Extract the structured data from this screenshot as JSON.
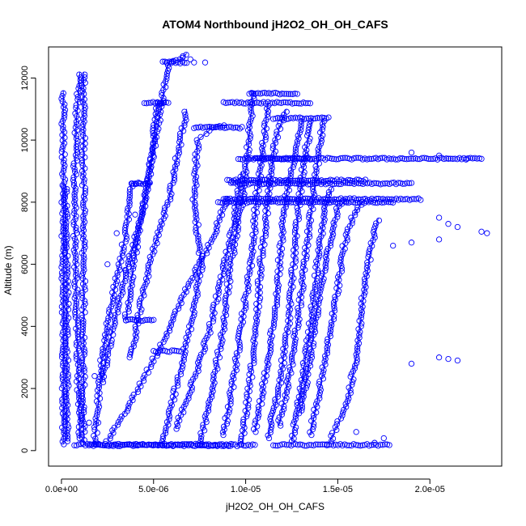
{
  "chart_data": {
    "type": "scatter",
    "title": "ATOM4 Northbound jH2O2_OH_OH_CAFS",
    "xlabel": "jH2O2_OH_OH_CAFS",
    "ylabel": "Altitude (m)",
    "xlim": [
      -7e-07,
      2.39e-05
    ],
    "ylim": [
      -500,
      13000
    ],
    "x_ticks": [
      0,
      5e-06,
      1e-05,
      1.5e-05,
      2e-05
    ],
    "x_tick_labels": [
      "0.0e+00",
      "5.0e-06",
      "1.0e-05",
      "1.5e-05",
      "2.0e-05"
    ],
    "y_ticks": [
      0,
      2000,
      4000,
      6000,
      8000,
      10000,
      12000
    ],
    "y_tick_labels": [
      "0",
      "2000",
      "4000",
      "6000",
      "8000",
      "10000",
      "12000"
    ],
    "marker": "open-circle",
    "series_color": "#0000ff",
    "grid": false,
    "legend": "none",
    "profiles": [
      [
        [
          1e-07,
          200
        ],
        [
          1e-07,
          3000
        ],
        [
          1e-07,
          6000
        ],
        [
          1e-07,
          9000
        ],
        [
          1e-07,
          11600
        ]
      ],
      [
        [
          3e-07,
          300
        ],
        [
          3e-07,
          2000
        ],
        [
          3e-07,
          4000
        ],
        [
          3e-07,
          6000
        ],
        [
          2e-07,
          8600
        ]
      ],
      [
        [
          1e-06,
          400
        ],
        [
          9e-07,
          2500
        ],
        [
          8e-07,
          5000
        ],
        [
          7e-07,
          8000
        ],
        [
          8e-07,
          10500
        ],
        [
          1e-06,
          12200
        ]
      ],
      [
        [
          1.2e-06,
          250
        ],
        [
          1.2e-06,
          3000
        ],
        [
          1.2e-06,
          6000
        ],
        [
          1.2e-06,
          9000
        ],
        [
          1.2e-06,
          12200
        ]
      ],
      [
        [
          1.8e-06,
          200
        ],
        [
          2e-06,
          1500
        ],
        [
          2.2e-06,
          3000
        ],
        [
          2.8e-06,
          5000
        ],
        [
          3.5e-06,
          7000
        ],
        [
          3.8e-06,
          8600
        ],
        [
          4.8e-06,
          8600
        ]
      ],
      [
        [
          2.2e-06,
          2200
        ],
        [
          2.8e-06,
          4000
        ],
        [
          3.6e-06,
          6000
        ],
        [
          4.4e-06,
          7600
        ],
        [
          4.9e-06,
          9500
        ],
        [
          5.2e-06,
          11200
        ],
        [
          5.6e-06,
          11200
        ]
      ],
      [
        [
          3.5e-06,
          4200
        ],
        [
          3.8e-06,
          5500
        ],
        [
          4.2e-06,
          7000
        ],
        [
          4.8e-06,
          9000
        ],
        [
          5.4e-06,
          11000
        ],
        [
          5.8e-06,
          12500
        ],
        [
          6.5e-06,
          12600
        ],
        [
          6.8e-06,
          12800
        ]
      ],
      [
        [
          3.8e-06,
          3000
        ],
        [
          4.4e-06,
          5000
        ],
        [
          5e-06,
          6500
        ],
        [
          5.8e-06,
          8000
        ],
        [
          6.3e-06,
          9500
        ],
        [
          6.8e-06,
          11000
        ]
      ],
      [
        [
          5.5e-06,
          200
        ],
        [
          6.2e-06,
          2000
        ],
        [
          7e-06,
          4000
        ],
        [
          7.6e-06,
          6000
        ],
        [
          7.2e-06,
          8000
        ],
        [
          7.4e-06,
          10000
        ],
        [
          8.2e-06,
          10400
        ],
        [
          9e-06,
          10500
        ]
      ],
      [
        [
          7.5e-06,
          200
        ],
        [
          8.2e-06,
          2000
        ],
        [
          8.8e-06,
          4000
        ],
        [
          9.2e-06,
          6000
        ],
        [
          9.8e-06,
          8000
        ],
        [
          1.01e-05,
          9500
        ],
        [
          1.04e-05,
          11600
        ]
      ],
      [
        [
          8.8e-06,
          500
        ],
        [
          9.4e-06,
          2500
        ],
        [
          9.9e-06,
          4500
        ],
        [
          1.04e-05,
          6500
        ],
        [
          1.06e-05,
          8200
        ],
        [
          1.1e-05,
          10000
        ],
        [
          1.12e-05,
          11200
        ]
      ],
      [
        [
          9.8e-06,
          200
        ],
        [
          1.02e-05,
          2000
        ],
        [
          1.06e-05,
          4000
        ],
        [
          1.08e-05,
          6000
        ],
        [
          1.12e-05,
          8000
        ],
        [
          1.16e-05,
          10000
        ],
        [
          1.22e-05,
          11000
        ]
      ],
      [
        [
          1.05e-05,
          600
        ],
        [
          1.11e-05,
          2500
        ],
        [
          1.16e-05,
          4500
        ],
        [
          1.19e-05,
          6500
        ],
        [
          1.22e-05,
          8200
        ],
        [
          1.26e-05,
          9400
        ],
        [
          1.31e-05,
          10700
        ]
      ],
      [
        [
          1.12e-05,
          400
        ],
        [
          1.18e-05,
          2000
        ],
        [
          1.23e-05,
          4000
        ],
        [
          1.26e-05,
          6000
        ],
        [
          1.29e-05,
          8000
        ],
        [
          1.32e-05,
          9400
        ],
        [
          1.36e-05,
          10700
        ]
      ],
      [
        [
          1.18e-05,
          800
        ],
        [
          1.24e-05,
          2500
        ],
        [
          1.29e-05,
          4500
        ],
        [
          1.32e-05,
          6000
        ],
        [
          1.35e-05,
          7500
        ],
        [
          1.38e-05,
          8700
        ],
        [
          1.42e-05,
          10700
        ]
      ],
      [
        [
          1.25e-05,
          300
        ],
        [
          1.3e-05,
          2000
        ],
        [
          1.35e-05,
          4000
        ],
        [
          1.39e-05,
          6000
        ],
        [
          1.43e-05,
          7800
        ],
        [
          1.47e-05,
          8500
        ]
      ],
      [
        [
          1.3e-05,
          1200
        ],
        [
          1.35e-05,
          3000
        ],
        [
          1.4e-05,
          5000
        ],
        [
          1.45e-05,
          6500
        ],
        [
          1.5e-05,
          7800
        ],
        [
          1.55e-05,
          8100
        ]
      ],
      [
        [
          1.35e-05,
          500
        ],
        [
          1.42e-05,
          2500
        ],
        [
          1.48e-05,
          4500
        ],
        [
          1.53e-05,
          6500
        ],
        [
          1.58e-05,
          7500
        ],
        [
          1.63e-05,
          8000
        ]
      ],
      [
        [
          1.45e-05,
          200
        ],
        [
          1.55e-05,
          1500
        ],
        [
          1.6e-05,
          3000
        ],
        [
          1.64e-05,
          5000
        ],
        [
          1.68e-05,
          6500
        ],
        [
          1.72e-05,
          7500
        ]
      ],
      [
        [
          2.5e-06,
          300
        ],
        [
          4e-06,
          1800
        ],
        [
          5.5e-06,
          3500
        ],
        [
          6.8e-06,
          5200
        ],
        [
          8.2e-06,
          6800
        ],
        [
          9e-06,
          8200
        ]
      ],
      [
        [
          6.2e-06,
          700
        ],
        [
          7.2e-06,
          2300
        ],
        [
          8e-06,
          3800
        ],
        [
          8.7e-06,
          5600
        ],
        [
          9.3e-06,
          7200
        ],
        [
          9.8e-06,
          9000
        ]
      ]
    ],
    "horizontal_runs": [
      [
        7e-07,
        9.2e-06,
        190
      ],
      [
        1.5e-06,
        1.05e-05,
        170
      ],
      [
        1.15e-05,
        1.78e-05,
        180
      ],
      [
        3.8e-06,
        4.8e-06,
        8600
      ],
      [
        4.5e-06,
        5.8e-06,
        11200
      ],
      [
        5.5e-06,
        6.8e-06,
        12500
      ],
      [
        7.2e-06,
        9.8e-06,
        10400
      ],
      [
        8.8e-06,
        1.35e-05,
        11200
      ],
      [
        9.6e-06,
        1.35e-05,
        9400
      ],
      [
        1.05e-05,
        2.28e-05,
        9400
      ],
      [
        9e-06,
        1.65e-05,
        8700
      ],
      [
        9.2e-06,
        1.9e-05,
        8600
      ],
      [
        8.8e-06,
        1.95e-05,
        8100
      ],
      [
        8.5e-06,
        1.8e-05,
        8000
      ],
      [
        1.15e-05,
        1.45e-05,
        10700
      ],
      [
        1.02e-05,
        1.28e-05,
        11500
      ],
      [
        3.5e-06,
        5e-06,
        4200
      ],
      [
        5e-06,
        6.5e-06,
        3200
      ]
    ],
    "outliers": [
      [
        2.05e-05,
        7500
      ],
      [
        2.1e-05,
        7300
      ],
      [
        2.15e-05,
        7200
      ],
      [
        2.28e-05,
        7050
      ],
      [
        2.31e-05,
        7000
      ],
      [
        2.05e-05,
        6800
      ],
      [
        1.9e-05,
        6700
      ],
      [
        1.8e-05,
        6600
      ],
      [
        2.05e-05,
        3000
      ],
      [
        2.1e-05,
        2950
      ],
      [
        2.15e-05,
        2900
      ],
      [
        1.9e-05,
        2800
      ],
      [
        1.9e-05,
        9600
      ],
      [
        2.05e-05,
        9500
      ],
      [
        2.1e-05,
        9400
      ],
      [
        2.2e-05,
        9400
      ],
      [
        1.75e-05,
        400
      ],
      [
        1.7e-05,
        250
      ],
      [
        1.6e-05,
        600
      ],
      [
        7e-06,
        12600
      ],
      [
        7.2e-06,
        12500
      ],
      [
        7.8e-06,
        12500
      ],
      [
        2.5e-06,
        6000
      ],
      [
        3.5e-06,
        5800
      ],
      [
        3e-06,
        7000
      ],
      [
        4e-06,
        7600
      ],
      [
        2e-06,
        900
      ],
      [
        1.5e-06,
        900
      ],
      [
        1.8e-06,
        2400
      ]
    ]
  }
}
